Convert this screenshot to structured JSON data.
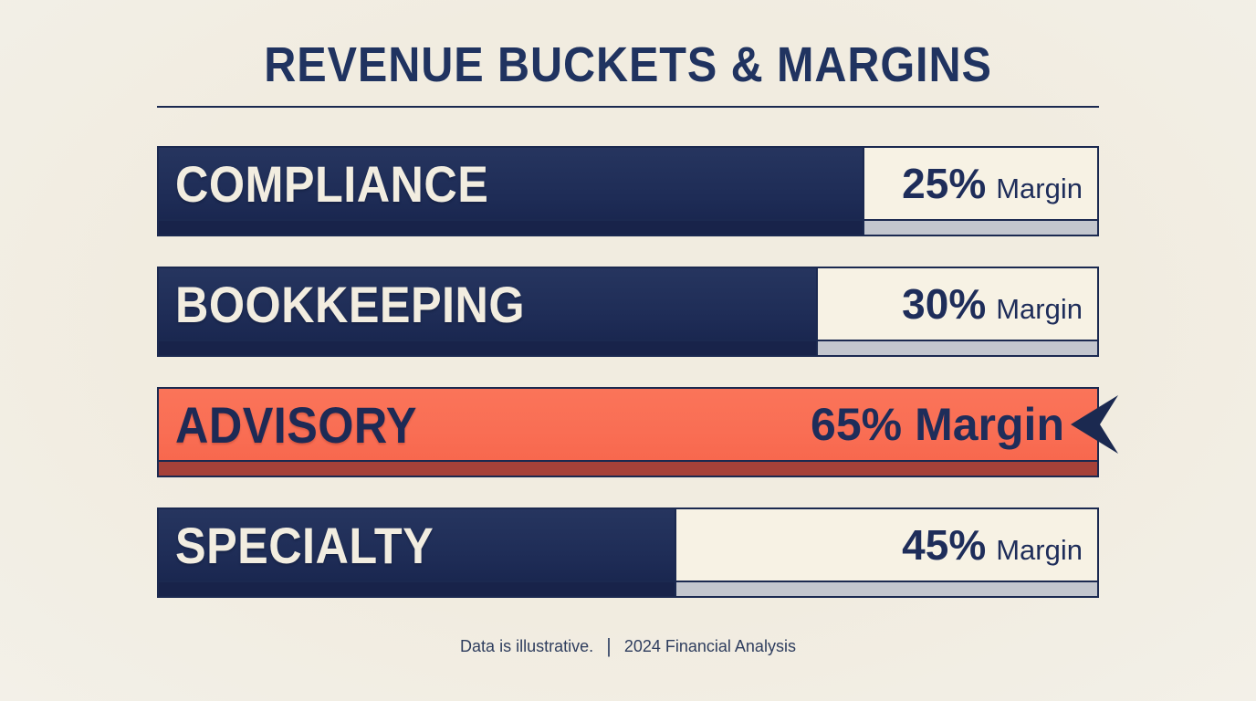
{
  "title": "REVENUE BUCKETS & MARGINS",
  "footer": {
    "note": "Data is illustrative.",
    "divider": "|",
    "source": "2024 Financial Analysis"
  },
  "chart_data": {
    "type": "bar",
    "orientation": "horizontal",
    "title": "REVENUE BUCKETS & MARGINS",
    "categories": [
      "COMPLIANCE",
      "BOOKKEEPING",
      "ADVISORY",
      "SPECIALTY"
    ],
    "values": [
      25,
      30,
      65,
      45
    ],
    "unit": "% Margin",
    "xlim": [
      0,
      100
    ],
    "highlighted_category": "ADVISORY",
    "legend": "none",
    "grid": "off",
    "annotations": [
      "Data is illustrative.",
      "2024 Financial Analysis"
    ],
    "note": "Each track is split: dark navy segment spans (100 - margin)% and cream segment spans margin%; the ADVISORY bar is fully filled in accent orange with a left-pointing arrow marker at its right edge."
  },
  "bars": [
    {
      "label": "COMPLIANCE",
      "value": 25,
      "value_text": "25%",
      "unit_text": "Margin",
      "highlighted": false
    },
    {
      "label": "BOOKKEEPING",
      "value": 30,
      "value_text": "30%",
      "unit_text": "Margin",
      "highlighted": false
    },
    {
      "label": "ADVISORY",
      "value": 65,
      "value_text": "65%",
      "unit_text": "Margin",
      "highlighted": true
    },
    {
      "label": "SPECIALTY",
      "value": 45,
      "value_text": "45%",
      "unit_text": "Margin",
      "highlighted": false
    }
  ],
  "colors": {
    "background": "#f2eee2",
    "panel": "#f7f2e4",
    "navy": "#1e2c56",
    "navy_border": "#1b2950",
    "navy_shadow": "#18234a",
    "gray_shadow": "#c3c6ce",
    "accent_orange": "#f96e54",
    "accent_shadow": "#a64139",
    "label": "#f2ede0",
    "title_text": "#203360",
    "value_text": "#1e2d5a"
  }
}
